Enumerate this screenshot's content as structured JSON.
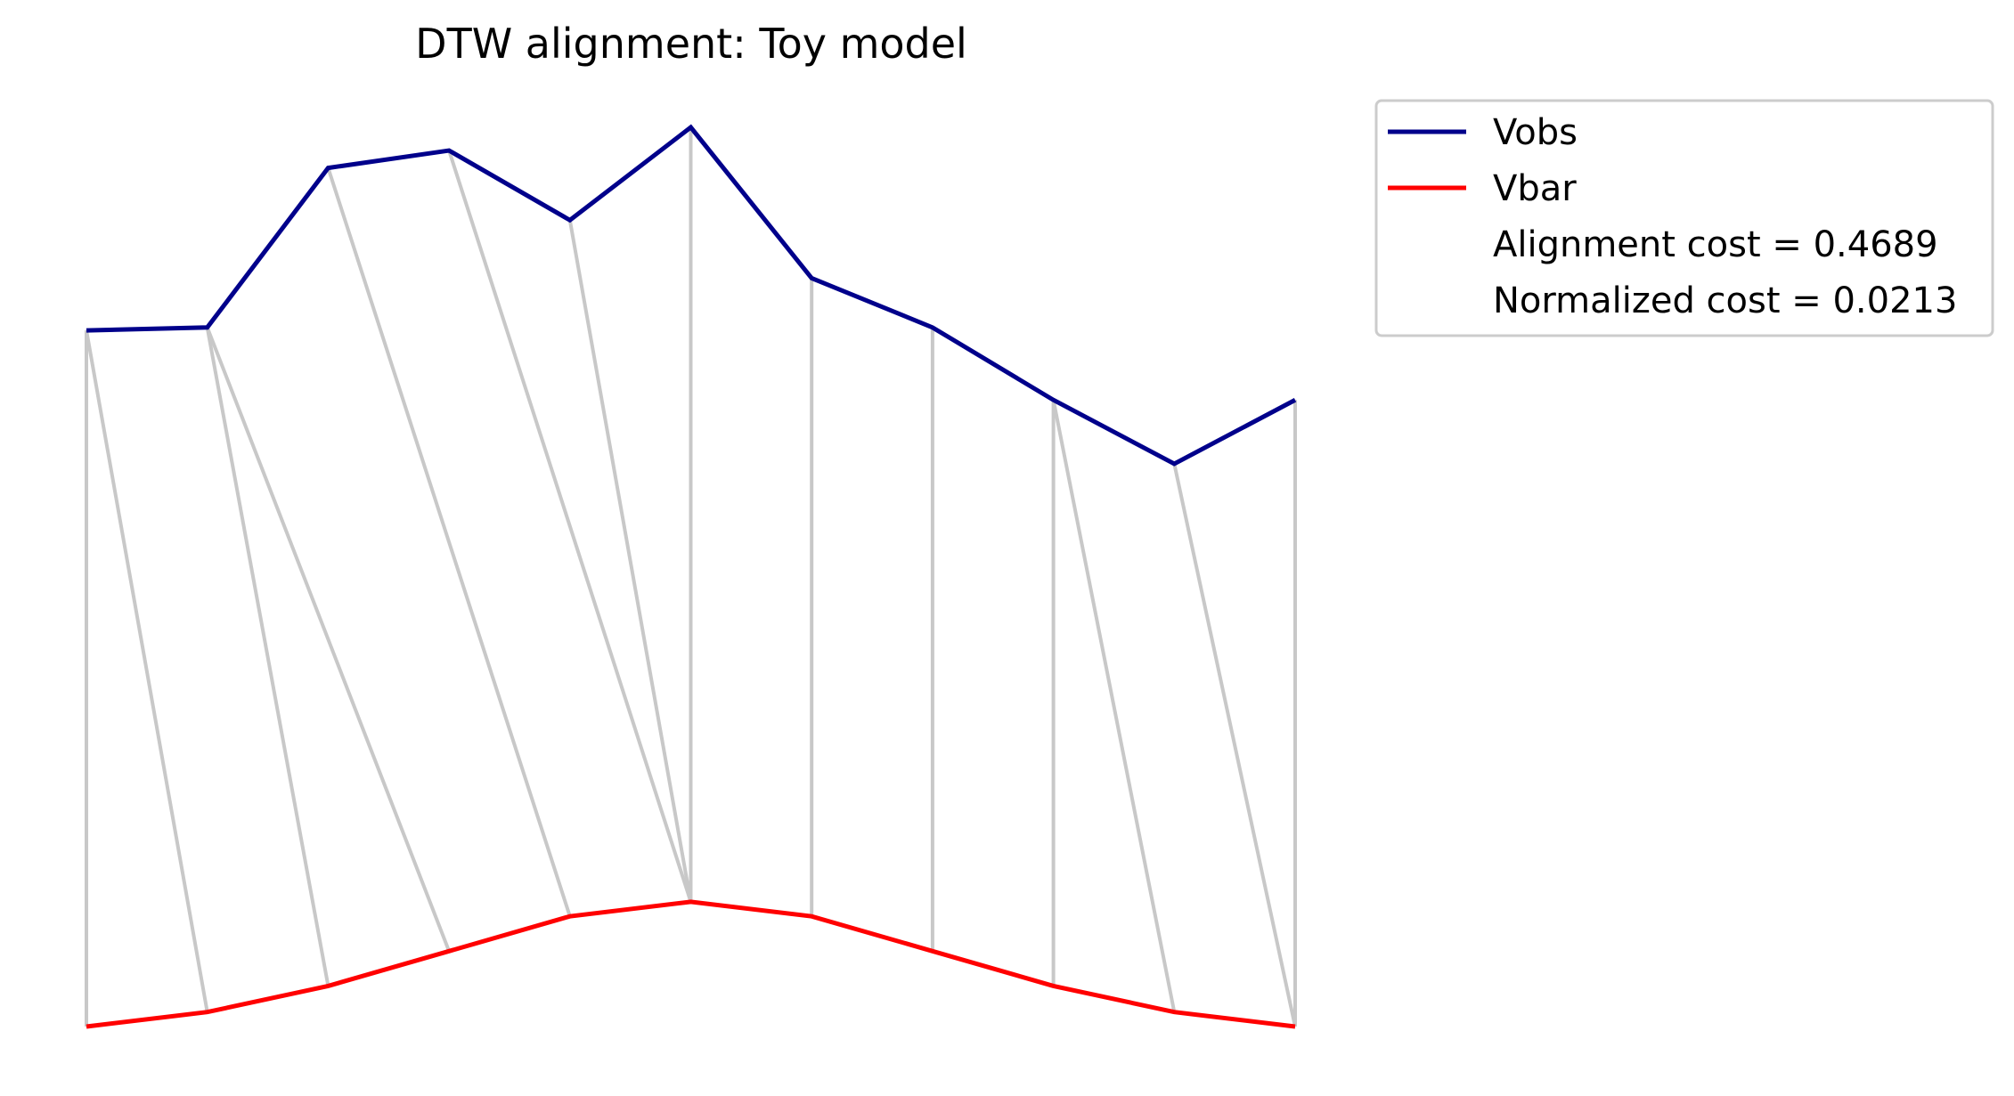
{
  "chart_data": {
    "type": "line",
    "title": "DTW alignment: Toy model",
    "xlabel": "",
    "ylabel": "",
    "axes_visible": false,
    "grid": false,
    "legend_placement": "outside-top-right",
    "series": [
      {
        "name": "Vobs",
        "color": "#00008b",
        "x": [
          0,
          1,
          2,
          3,
          4,
          5,
          6,
          7,
          8,
          9,
          10
        ],
        "values": [
          0.3,
          0.31,
          0.86,
          0.92,
          0.68,
          1.0,
          0.48,
          0.31,
          0.06,
          -0.16,
          0.06
        ]
      },
      {
        "name": "Vbar",
        "color": "#ff0000",
        "x": [
          0,
          1,
          2,
          3,
          4,
          5,
          6,
          7,
          8,
          9,
          10
        ],
        "values": [
          -2.1,
          -2.05,
          -1.96,
          -1.84,
          -1.72,
          -1.67,
          -1.72,
          -1.84,
          -1.96,
          -2.05,
          -2.1
        ]
      }
    ],
    "alignment_color": "#c8c8c8",
    "alignment_pairs": [
      [
        0,
        0
      ],
      [
        0,
        1
      ],
      [
        1,
        2
      ],
      [
        1,
        3
      ],
      [
        2,
        4
      ],
      [
        3,
        5
      ],
      [
        4,
        5
      ],
      [
        5,
        5
      ],
      [
        6,
        6
      ],
      [
        7,
        7
      ],
      [
        8,
        8
      ],
      [
        8,
        9
      ],
      [
        9,
        10
      ],
      [
        10,
        10
      ]
    ],
    "legend_entries": [
      "Vobs",
      "Vbar",
      "Alignment cost = 0.4689",
      "Normalized cost = 0.0213"
    ]
  }
}
